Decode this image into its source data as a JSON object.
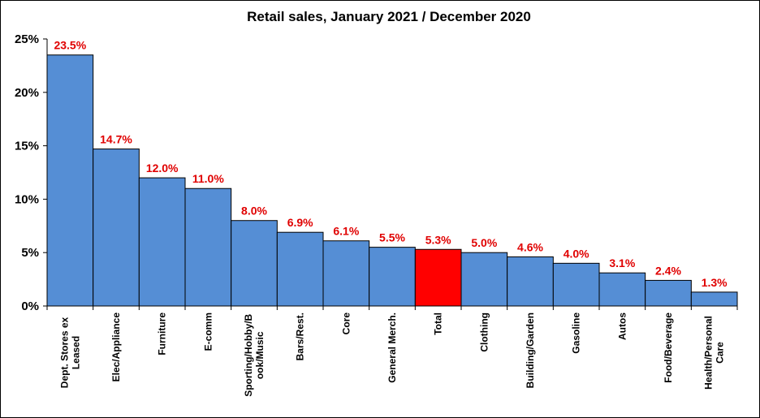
{
  "chart_data": {
    "type": "bar",
    "title": "Retail sales, January 2021 / December 2020",
    "xlabel": "",
    "ylabel": "",
    "ylim": [
      0,
      25
    ],
    "yticks": [
      0,
      5,
      10,
      15,
      20,
      25
    ],
    "ytick_labels": [
      "0%",
      "5%",
      "10%",
      "15%",
      "20%",
      "25%"
    ],
    "grid": false,
    "legend": "none",
    "categories": [
      [
        "Dept. Stores ex",
        "Leased"
      ],
      [
        "Elec/Appliance"
      ],
      [
        "Furniture"
      ],
      [
        "E-comm"
      ],
      [
        "Sporting/Hobby/B",
        "ook/Music"
      ],
      [
        "Bars/Rest."
      ],
      [
        "Core"
      ],
      [
        "General Merch."
      ],
      [
        "Total"
      ],
      [
        "Clothing"
      ],
      [
        "Building/Garden"
      ],
      [
        "Gasoline"
      ],
      [
        "Autos"
      ],
      [
        "Food/Beverage"
      ],
      [
        "Health/Personal",
        "Care"
      ]
    ],
    "values": [
      23.5,
      14.7,
      12.0,
      11.0,
      8.0,
      6.9,
      6.1,
      5.5,
      5.3,
      5.0,
      4.6,
      4.0,
      3.1,
      2.4,
      1.3
    ],
    "data_labels": [
      "23.5%",
      "14.7%",
      "12.0%",
      "11.0%",
      "8.0%",
      "6.9%",
      "6.1%",
      "5.5%",
      "5.3%",
      "5.0%",
      "4.6%",
      "4.0%",
      "3.1%",
      "2.4%",
      "1.3%"
    ],
    "colors": {
      "bar": "#558ed5",
      "highlight_bar": "#ff0000",
      "highlight_category": "Total",
      "data_label": "#e00000",
      "axis": "#000000"
    }
  }
}
